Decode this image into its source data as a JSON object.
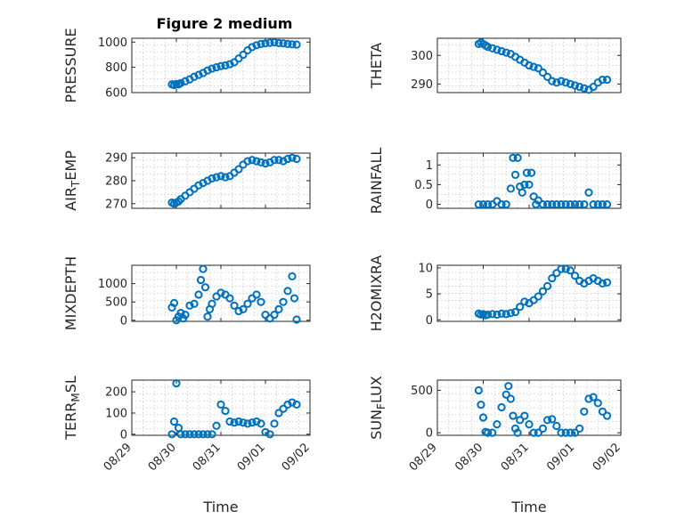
{
  "figure": {
    "title": "Figure 2 medium",
    "xlabel": "Time",
    "marker_color": "#0072BD",
    "axis_color": "#262626"
  },
  "chart_data": [
    {
      "type": "scatter",
      "ylabel": "PRESSURE",
      "ylim": [
        600,
        1030
      ],
      "yticks": [
        600,
        800,
        1000
      ],
      "ytick_labels": [
        "600",
        "800",
        "1000"
      ],
      "xticks": [],
      "xtick_labels": [],
      "grid": true,
      "series": [
        {
          "x": [
            0.9,
            0.95,
            1.0,
            1.05,
            1.1,
            1.2,
            1.3,
            1.4,
            1.5,
            1.6,
            1.7,
            1.8,
            1.9,
            2.0,
            2.1,
            2.2,
            2.3,
            2.4,
            2.5,
            2.6,
            2.7,
            2.8,
            2.9,
            3.0,
            3.1,
            3.2,
            3.3,
            3.4,
            3.5,
            3.6,
            3.7
          ],
          "y": [
            665,
            660,
            668,
            665,
            675,
            690,
            705,
            725,
            740,
            755,
            775,
            790,
            800,
            810,
            815,
            825,
            840,
            870,
            900,
            935,
            960,
            975,
            985,
            990,
            995,
            998,
            992,
            990,
            985,
            982,
            980
          ]
        }
      ]
    },
    {
      "type": "scatter",
      "ylabel": "THETA",
      "ylim": [
        287,
        306
      ],
      "yticks": [
        290,
        300
      ],
      "ytick_labels": [
        "290",
        "300"
      ],
      "xticks": [],
      "xtick_labels": [],
      "grid": true,
      "series": [
        {
          "x": [
            0.9,
            0.95,
            1.0,
            1.05,
            1.1,
            1.2,
            1.3,
            1.4,
            1.5,
            1.6,
            1.7,
            1.8,
            1.9,
            2.0,
            2.1,
            2.2,
            2.3,
            2.4,
            2.5,
            2.6,
            2.7,
            2.8,
            2.9,
            3.0,
            3.1,
            3.2,
            3.3,
            3.4,
            3.5,
            3.6,
            3.7
          ],
          "y": [
            304,
            304.5,
            304,
            303.5,
            303,
            302.5,
            302,
            301.5,
            301,
            300.5,
            299.5,
            298.5,
            297.5,
            296.5,
            296,
            295.5,
            294,
            292.5,
            291,
            290.5,
            291,
            290.5,
            290,
            289.5,
            289,
            288.5,
            288,
            289,
            290.5,
            291.5,
            291.5
          ]
        }
      ]
    },
    {
      "type": "scatter",
      "ylabel": "AIR_TEMP",
      "ylim": [
        268,
        292
      ],
      "yticks": [
        270,
        280,
        290
      ],
      "ytick_labels": [
        "270",
        "280",
        "290"
      ],
      "xticks": [],
      "xtick_labels": [],
      "grid": true,
      "series": [
        {
          "x": [
            0.9,
            0.95,
            1.0,
            1.05,
            1.1,
            1.2,
            1.3,
            1.4,
            1.5,
            1.6,
            1.7,
            1.8,
            1.9,
            2.0,
            2.1,
            2.2,
            2.3,
            2.4,
            2.5,
            2.6,
            2.7,
            2.8,
            2.9,
            3.0,
            3.1,
            3.2,
            3.3,
            3.4,
            3.5,
            3.6,
            3.7
          ],
          "y": [
            270.5,
            270,
            270.5,
            271,
            272,
            273.5,
            275,
            276.5,
            278,
            279,
            280,
            281,
            281.5,
            282,
            281.5,
            282,
            283.5,
            285,
            287,
            288.5,
            289,
            288.5,
            288,
            287.5,
            288,
            289,
            289,
            288.5,
            289.5,
            290,
            289.5
          ]
        }
      ]
    },
    {
      "type": "scatter",
      "ylabel": "RAINFALL",
      "ylim": [
        -0.1,
        1.3
      ],
      "yticks": [
        0,
        0.5,
        1
      ],
      "ytick_labels": [
        "0",
        "0.5",
        "1"
      ],
      "xticks": [],
      "xtick_labels": [],
      "grid": true,
      "series": [
        {
          "x": [
            0.9,
            1.0,
            1.1,
            1.2,
            1.3,
            1.4,
            1.5,
            1.6,
            1.65,
            1.7,
            1.75,
            1.8,
            1.85,
            1.9,
            1.95,
            2.0,
            2.05,
            2.1,
            2.15,
            2.2,
            2.3,
            2.4,
            2.5,
            2.6,
            2.7,
            2.8,
            2.9,
            3.0,
            3.1,
            3.2,
            3.3,
            3.4,
            3.5,
            3.6,
            3.7
          ],
          "y": [
            0,
            0,
            0,
            0,
            0.08,
            0,
            0,
            0.4,
            1.18,
            0.75,
            1.18,
            0.45,
            0.3,
            0.5,
            0.8,
            0.5,
            0.8,
            0.2,
            0,
            0.1,
            0,
            0,
            0,
            0,
            0,
            0,
            0,
            0,
            0,
            0,
            0.3,
            0,
            0,
            0,
            0
          ]
        }
      ]
    },
    {
      "type": "scatter",
      "ylabel": "MIXDEPTH",
      "ylim": [
        -30,
        1500
      ],
      "yticks": [
        0,
        500,
        1000
      ],
      "ytick_labels": [
        "0",
        "500",
        "1000"
      ],
      "xticks": [],
      "xtick_labels": [],
      "grid": true,
      "series": [
        {
          "x": [
            0.9,
            0.95,
            1.0,
            1.05,
            1.1,
            1.15,
            1.2,
            1.3,
            1.4,
            1.5,
            1.55,
            1.6,
            1.65,
            1.7,
            1.75,
            1.8,
            1.9,
            2.0,
            2.1,
            2.2,
            2.3,
            2.4,
            2.5,
            2.6,
            2.7,
            2.8,
            2.9,
            3.0,
            3.1,
            3.2,
            3.3,
            3.4,
            3.5,
            3.6,
            3.65,
            3.7
          ],
          "y": [
            350,
            470,
            0,
            100,
            200,
            50,
            150,
            400,
            450,
            700,
            1100,
            1400,
            900,
            100,
            300,
            450,
            650,
            750,
            700,
            600,
            400,
            250,
            300,
            450,
            600,
            700,
            500,
            150,
            50,
            150,
            300,
            500,
            800,
            1200,
            600,
            20
          ]
        }
      ]
    },
    {
      "type": "scatter",
      "ylabel": "H2OMIXRA",
      "ylim": [
        -0.3,
        10.5
      ],
      "yticks": [
        0,
        5,
        10
      ],
      "ytick_labels": [
        "0",
        "5",
        "10"
      ],
      "xticks": [],
      "xtick_labels": [],
      "grid": true,
      "series": [
        {
          "x": [
            0.9,
            0.95,
            1.0,
            1.05,
            1.1,
            1.2,
            1.3,
            1.4,
            1.5,
            1.6,
            1.7,
            1.8,
            1.9,
            2.0,
            2.1,
            2.2,
            2.3,
            2.4,
            2.5,
            2.6,
            2.7,
            2.8,
            2.9,
            3.0,
            3.1,
            3.2,
            3.3,
            3.4,
            3.5,
            3.6,
            3.7
          ],
          "y": [
            1.2,
            1.0,
            1.1,
            0.9,
            1.0,
            1.1,
            1.0,
            1.2,
            1.1,
            1.3,
            1.5,
            2.5,
            3.5,
            3.2,
            3.8,
            4.5,
            5.5,
            6.5,
            8.0,
            9.0,
            9.8,
            9.8,
            9.5,
            8.5,
            7.5,
            7.0,
            7.5,
            8.0,
            7.5,
            7.0,
            7.2
          ]
        }
      ]
    },
    {
      "type": "scatter",
      "ylabel": "TERR_MSL",
      "ylim": [
        -5,
        255
      ],
      "yticks": [
        0,
        100,
        200
      ],
      "ytick_labels": [
        "0",
        "100",
        "200"
      ],
      "xticks": [
        1,
        2,
        3,
        4,
        5
      ],
      "xtick_labels": [
        "08/29",
        "08/30",
        "08/31",
        "09/01",
        "09/02"
      ],
      "grid": true,
      "series": [
        {
          "x": [
            0.9,
            0.95,
            1.0,
            1.05,
            1.1,
            1.2,
            1.3,
            1.4,
            1.5,
            1.6,
            1.7,
            1.8,
            1.9,
            2.0,
            2.1,
            2.2,
            2.3,
            2.4,
            2.5,
            2.6,
            2.7,
            2.8,
            2.9,
            3.0,
            3.1,
            3.2,
            3.3,
            3.4,
            3.5,
            3.6,
            3.7
          ],
          "y": [
            0,
            60,
            240,
            30,
            0,
            0,
            0,
            0,
            0,
            0,
            0,
            0,
            40,
            140,
            110,
            60,
            55,
            60,
            55,
            50,
            55,
            60,
            50,
            10,
            0,
            50,
            100,
            120,
            140,
            150,
            140
          ]
        }
      ]
    },
    {
      "type": "scatter",
      "ylabel": "SUN_FLUX",
      "ylim": [
        -30,
        620
      ],
      "yticks": [
        0,
        500
      ],
      "ytick_labels": [
        "0",
        "500"
      ],
      "xticks": [
        1,
        2,
        3,
        4,
        5
      ],
      "xtick_labels": [
        "08/29",
        "08/30",
        "08/31",
        "09/01",
        "09/02"
      ],
      "grid": true,
      "series": [
        {
          "x": [
            0.9,
            0.95,
            1.0,
            1.05,
            1.1,
            1.2,
            1.3,
            1.4,
            1.5,
            1.55,
            1.6,
            1.65,
            1.7,
            1.75,
            1.8,
            1.9,
            2.0,
            2.1,
            2.2,
            2.3,
            2.4,
            2.5,
            2.6,
            2.7,
            2.8,
            2.9,
            3.0,
            3.1,
            3.2,
            3.3,
            3.4,
            3.5,
            3.6,
            3.7
          ],
          "y": [
            500,
            330,
            180,
            10,
            0,
            0,
            100,
            300,
            450,
            550,
            400,
            200,
            50,
            0,
            150,
            200,
            100,
            0,
            0,
            50,
            150,
            160,
            80,
            0,
            0,
            0,
            0,
            50,
            250,
            400,
            420,
            350,
            250,
            200
          ]
        }
      ]
    }
  ]
}
